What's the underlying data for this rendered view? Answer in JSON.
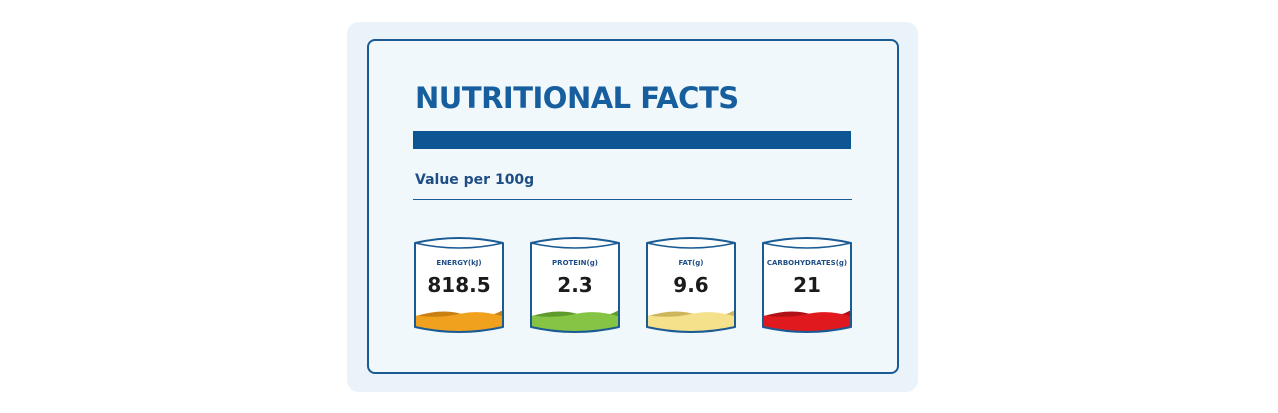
{
  "card": {
    "title": "NUTRITIONAL FACTS",
    "subtitle": "Value per 100g"
  },
  "facts": [
    {
      "label": "ENERGY(kJ)",
      "value": "818.5",
      "fill_color": "#f0a21e",
      "shade_color": "#c97f12"
    },
    {
      "label": "PROTEIN(g)",
      "value": "2.3",
      "fill_color": "#86c446",
      "shade_color": "#5e9a2c"
    },
    {
      "label": "FAT(g)",
      "value": "9.6",
      "fill_color": "#f5e08c",
      "shade_color": "#cdb55c"
    },
    {
      "label": "CARBOHYDRATES(g)",
      "value": "21",
      "fill_color": "#e0191e",
      "shade_color": "#b01116"
    }
  ],
  "colors": {
    "accent": "#0e5593",
    "border": "#1a5b94",
    "background": "#f1f8fb"
  }
}
